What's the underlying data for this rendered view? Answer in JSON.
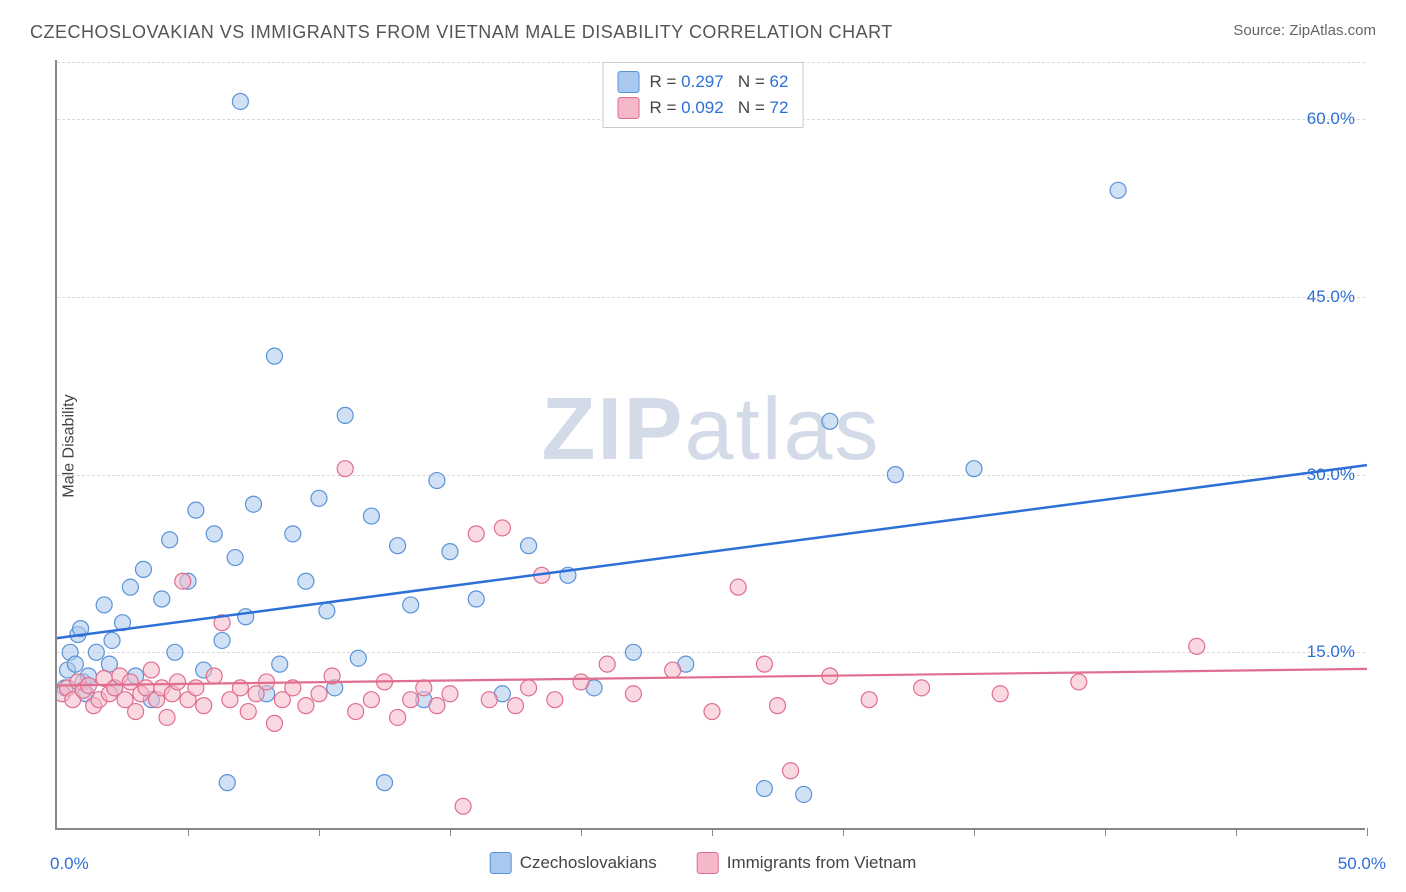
{
  "title": "CZECHOSLOVAKIAN VS IMMIGRANTS FROM VIETNAM MALE DISABILITY CORRELATION CHART",
  "source_label": "Source: ",
  "source_name": "ZipAtlas.com",
  "ylabel": "Male Disability",
  "watermark_a": "ZIP",
  "watermark_b": "atlas",
  "chart": {
    "type": "scatter",
    "xlim": [
      0,
      50
    ],
    "ylim": [
      0,
      65
    ],
    "x_origin_label": "0.0%",
    "x_max_label": "50.0%",
    "y_ticks": [
      15.0,
      30.0,
      45.0,
      60.0
    ],
    "y_tick_labels": [
      "15.0%",
      "30.0%",
      "45.0%",
      "60.0%"
    ],
    "x_tick_positions": [
      5,
      10,
      15,
      20,
      25,
      30,
      35,
      40,
      45,
      50
    ],
    "background_color": "#ffffff",
    "grid_color": "#d8d8d8",
    "axis_color": "#888888",
    "marker_radius": 8,
    "marker_stroke_width": 1.2,
    "series": [
      {
        "name": "Czechoslovakians",
        "fill": "#a9c8ef",
        "stroke": "#5a93d8",
        "fill_opacity": 0.55,
        "trend_color": "#2c6fd6",
        "trend_width": 2.5,
        "trend": {
          "x1": 0,
          "y1": 16.2,
          "x2": 50,
          "y2": 30.8
        },
        "R": "0.297",
        "N": "62",
        "points": [
          [
            0.3,
            12.0
          ],
          [
            0.4,
            13.5
          ],
          [
            0.5,
            15.0
          ],
          [
            0.7,
            14.0
          ],
          [
            0.8,
            16.5
          ],
          [
            0.9,
            17.0
          ],
          [
            1.0,
            12.5
          ],
          [
            1.2,
            13.0
          ],
          [
            1.5,
            15.0
          ],
          [
            1.8,
            19.0
          ],
          [
            2.0,
            14.0
          ],
          [
            2.2,
            12.0
          ],
          [
            2.5,
            17.5
          ],
          [
            2.8,
            20.5
          ],
          [
            3.0,
            13.0
          ],
          [
            3.3,
            22.0
          ],
          [
            3.6,
            11.0
          ],
          [
            4.0,
            19.5
          ],
          [
            4.3,
            24.5
          ],
          [
            4.5,
            15.0
          ],
          [
            5.0,
            21.0
          ],
          [
            5.3,
            27.0
          ],
          [
            5.6,
            13.5
          ],
          [
            6.0,
            25.0
          ],
          [
            6.3,
            16.0
          ],
          [
            6.5,
            4.0
          ],
          [
            6.8,
            23.0
          ],
          [
            7.0,
            61.5
          ],
          [
            7.2,
            18.0
          ],
          [
            7.5,
            27.5
          ],
          [
            8.0,
            11.5
          ],
          [
            8.3,
            40.0
          ],
          [
            8.5,
            14.0
          ],
          [
            9.0,
            25.0
          ],
          [
            9.5,
            21.0
          ],
          [
            10.0,
            28.0
          ],
          [
            10.3,
            18.5
          ],
          [
            10.6,
            12.0
          ],
          [
            11.0,
            35.0
          ],
          [
            11.5,
            14.5
          ],
          [
            12.0,
            26.5
          ],
          [
            12.5,
            4.0
          ],
          [
            13.0,
            24.0
          ],
          [
            13.5,
            19.0
          ],
          [
            14.0,
            11.0
          ],
          [
            14.5,
            29.5
          ],
          [
            15.0,
            23.5
          ],
          [
            16.0,
            19.5
          ],
          [
            17.0,
            11.5
          ],
          [
            18.0,
            24.0
          ],
          [
            19.5,
            21.5
          ],
          [
            20.5,
            12.0
          ],
          [
            22.0,
            15.0
          ],
          [
            24.0,
            14.0
          ],
          [
            27.0,
            3.5
          ],
          [
            28.5,
            3.0
          ],
          [
            29.5,
            34.5
          ],
          [
            32.0,
            30.0
          ],
          [
            35.0,
            30.5
          ],
          [
            40.5,
            54.0
          ],
          [
            1.1,
            11.5
          ],
          [
            2.1,
            16.0
          ]
        ]
      },
      {
        "name": "Immigrants from Vietnam",
        "fill": "#f4b8c8",
        "stroke": "#e06e8f",
        "fill_opacity": 0.55,
        "trend_color": "#e06e8f",
        "trend_width": 2.2,
        "trend": {
          "x1": 0,
          "y1": 12.2,
          "x2": 50,
          "y2": 13.6
        },
        "R": "0.092",
        "N": "72",
        "points": [
          [
            0.2,
            11.5
          ],
          [
            0.4,
            12.0
          ],
          [
            0.6,
            11.0
          ],
          [
            0.8,
            12.5
          ],
          [
            1.0,
            11.8
          ],
          [
            1.2,
            12.2
          ],
          [
            1.4,
            10.5
          ],
          [
            1.6,
            11.0
          ],
          [
            1.8,
            12.8
          ],
          [
            2.0,
            11.5
          ],
          [
            2.2,
            12.0
          ],
          [
            2.4,
            13.0
          ],
          [
            2.6,
            11.0
          ],
          [
            2.8,
            12.5
          ],
          [
            3.0,
            10.0
          ],
          [
            3.2,
            11.5
          ],
          [
            3.4,
            12.0
          ],
          [
            3.6,
            13.5
          ],
          [
            3.8,
            11.0
          ],
          [
            4.0,
            12.0
          ],
          [
            4.2,
            9.5
          ],
          [
            4.4,
            11.5
          ],
          [
            4.6,
            12.5
          ],
          [
            4.8,
            21.0
          ],
          [
            5.0,
            11.0
          ],
          [
            5.3,
            12.0
          ],
          [
            5.6,
            10.5
          ],
          [
            6.0,
            13.0
          ],
          [
            6.3,
            17.5
          ],
          [
            6.6,
            11.0
          ],
          [
            7.0,
            12.0
          ],
          [
            7.3,
            10.0
          ],
          [
            7.6,
            11.5
          ],
          [
            8.0,
            12.5
          ],
          [
            8.3,
            9.0
          ],
          [
            8.6,
            11.0
          ],
          [
            9.0,
            12.0
          ],
          [
            9.5,
            10.5
          ],
          [
            10.0,
            11.5
          ],
          [
            10.5,
            13.0
          ],
          [
            11.0,
            30.5
          ],
          [
            11.4,
            10.0
          ],
          [
            12.0,
            11.0
          ],
          [
            12.5,
            12.5
          ],
          [
            13.0,
            9.5
          ],
          [
            13.5,
            11.0
          ],
          [
            14.0,
            12.0
          ],
          [
            14.5,
            10.5
          ],
          [
            15.0,
            11.5
          ],
          [
            15.5,
            2.0
          ],
          [
            16.0,
            25.0
          ],
          [
            16.5,
            11.0
          ],
          [
            17.0,
            25.5
          ],
          [
            18.0,
            12.0
          ],
          [
            18.5,
            21.5
          ],
          [
            19.0,
            11.0
          ],
          [
            20.0,
            12.5
          ],
          [
            21.0,
            14.0
          ],
          [
            22.0,
            11.5
          ],
          [
            23.5,
            13.5
          ],
          [
            25.0,
            10.0
          ],
          [
            26.0,
            20.5
          ],
          [
            27.0,
            14.0
          ],
          [
            27.5,
            10.5
          ],
          [
            28.0,
            5.0
          ],
          [
            29.5,
            13.0
          ],
          [
            31.0,
            11.0
          ],
          [
            33.0,
            12.0
          ],
          [
            36.0,
            11.5
          ],
          [
            39.0,
            12.5
          ],
          [
            43.5,
            15.5
          ],
          [
            17.5,
            10.5
          ]
        ]
      }
    ]
  },
  "legend": {
    "series1_label": "Czechoslovakians",
    "series2_label": "Immigrants from Vietnam"
  },
  "stats_labels": {
    "r": "R",
    "n": "N",
    "eq": "="
  }
}
